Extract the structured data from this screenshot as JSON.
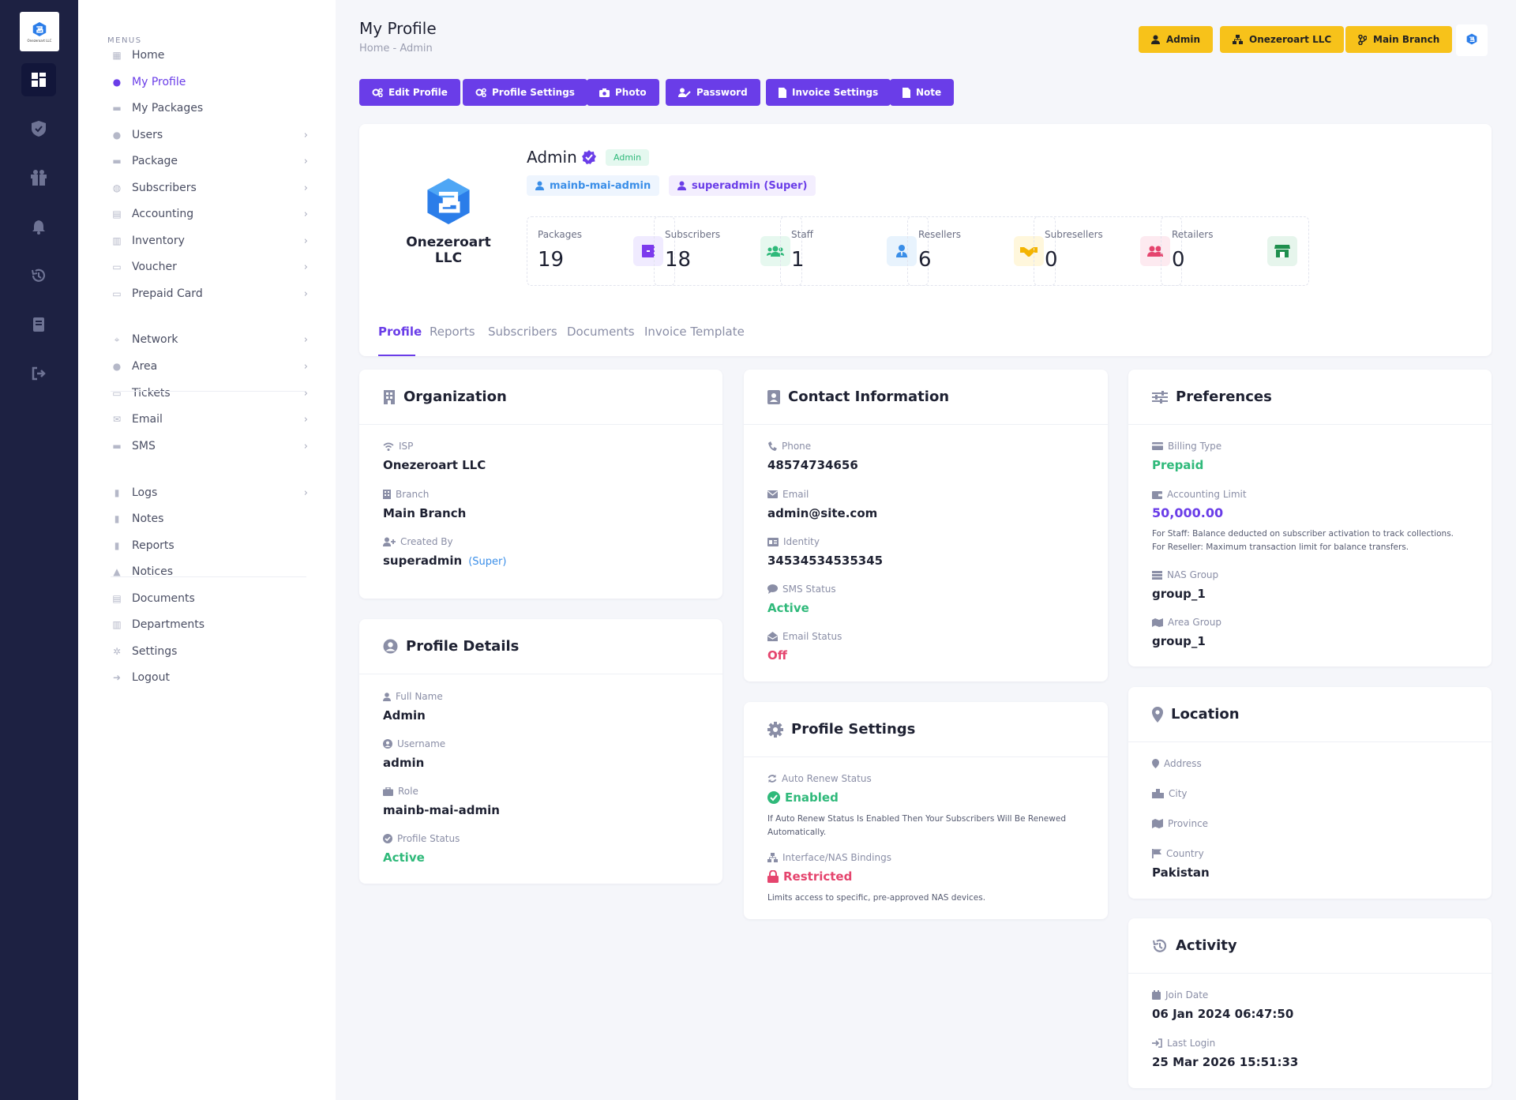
{
  "brand": {
    "name": "Onezeroart LLC",
    "logo_caption": "Onezeroart LLC"
  },
  "menu": {
    "heading": "MENUS",
    "items": [
      {
        "label": "Home",
        "icon": "home-icon",
        "chev": false
      },
      {
        "label": "My Profile",
        "icon": "user-icon",
        "chev": false,
        "active": true
      },
      {
        "label": "My Packages",
        "icon": "package-icon",
        "chev": false
      },
      {
        "label": "Users",
        "icon": "user-icon",
        "chev": true
      },
      {
        "label": "Package",
        "icon": "package-icon",
        "chev": true
      },
      {
        "label": "Subscribers",
        "icon": "users-icon",
        "chev": true
      },
      {
        "label": "Accounting",
        "icon": "calculator-icon",
        "chev": true
      },
      {
        "label": "Inventory",
        "icon": "warehouse-icon",
        "chev": true
      },
      {
        "label": "Voucher",
        "icon": "ticket-icon",
        "chev": true
      },
      {
        "label": "Prepaid Card",
        "icon": "card-icon",
        "chev": true
      },
      {
        "label": "Network",
        "icon": "network-icon",
        "chev": true
      },
      {
        "label": "Area",
        "icon": "map-pin-icon",
        "chev": true
      },
      {
        "label": "Tickets",
        "icon": "ticket-icon",
        "chev": true
      },
      {
        "label": "Email",
        "icon": "envelope-icon",
        "chev": true
      },
      {
        "label": "SMS",
        "icon": "sms-icon",
        "chev": true
      },
      {
        "label": "Logs",
        "icon": "book-icon",
        "chev": true
      },
      {
        "label": "Notes",
        "icon": "note-icon",
        "chev": false
      },
      {
        "label": "Reports",
        "icon": "report-icon",
        "chev": false
      },
      {
        "label": "Notices",
        "icon": "bell-icon",
        "chev": false
      },
      {
        "label": "Documents",
        "icon": "document-icon",
        "chev": false
      },
      {
        "label": "Departments",
        "icon": "building-icon",
        "chev": false
      },
      {
        "label": "Settings",
        "icon": "gear-icon",
        "chev": false
      },
      {
        "label": "Logout",
        "icon": "logout-icon",
        "chev": false
      }
    ]
  },
  "header": {
    "title": "My Profile",
    "breadcrumb": "Home  -  Admin",
    "top_buttons": [
      "Admin",
      "Onezeroart LLC",
      "Main Branch"
    ],
    "action_buttons": [
      "Edit Profile",
      "Profile Settings",
      "Photo",
      "Password",
      "Invoice Settings",
      "Note"
    ]
  },
  "profile": {
    "name": "Admin",
    "role_badge": "Admin",
    "chips": [
      "mainb-mai-admin",
      "superadmin (Super)"
    ],
    "stats": [
      {
        "label": "Packages",
        "value": "19",
        "color": "#7c3aed",
        "bg": "#f0ebff",
        "icon": "box-icon"
      },
      {
        "label": "Subscribers",
        "value": "18",
        "color": "#2fb97a",
        "bg": "#e6f8ef",
        "icon": "users-icon"
      },
      {
        "label": "Staff",
        "value": "1",
        "color": "#3a8ee8",
        "bg": "#e8f3fd",
        "icon": "user-tie-icon"
      },
      {
        "label": "Resellers",
        "value": "6",
        "color": "#f4b400",
        "bg": "#fff7dc",
        "icon": "handshake-icon"
      },
      {
        "label": "Subresellers",
        "value": "0",
        "color": "#e5456e",
        "bg": "#fdeaf0",
        "icon": "user-group-icon"
      },
      {
        "label": "Retailers",
        "value": "0",
        "color": "#1f8f4e",
        "bg": "#e6f5ec",
        "icon": "store-icon"
      }
    ],
    "tabs": [
      "Profile",
      "Reports",
      "Subscribers",
      "Documents",
      "Invoice Template"
    ]
  },
  "organization": {
    "title": "Organization",
    "isp_label": "ISP",
    "isp": "Onezeroart LLC",
    "branch_label": "Branch",
    "branch": "Main Branch",
    "created_label": "Created By",
    "created_by": "superadmin",
    "created_tag": "(Super)"
  },
  "profile_details": {
    "title": "Profile Details",
    "fullname_label": "Full Name",
    "fullname": "Admin",
    "username_label": "Username",
    "username": "admin",
    "role_label": "Role",
    "role": "mainb-mai-admin",
    "status_label": "Profile Status",
    "status": "Active"
  },
  "contact": {
    "title": "Contact Information",
    "phone_label": "Phone",
    "phone": "48574734656",
    "email_label": "Email",
    "email": "admin@site.com",
    "identity_label": "Identity",
    "identity": "34534534535345",
    "sms_label": "SMS Status",
    "sms": "Active",
    "email_status_label": "Email Status",
    "email_status": "Off"
  },
  "profile_settings": {
    "title": "Profile Settings",
    "auto_label": "Auto Renew Status",
    "auto": "Enabled",
    "auto_note": "If Auto Renew Status Is Enabled Then Your Subscribers Will Be Renewed Automatically.",
    "nas_label": "Interface/NAS Bindings",
    "nas": "Restricted",
    "nas_note": "Limits access to specific, pre-approved NAS devices."
  },
  "preferences": {
    "title": "Preferences",
    "billing_label": "Billing Type",
    "billing": "Prepaid",
    "limit_label": "Accounting Limit",
    "limit": "50,000.00",
    "limit_note1": "For Staff: Balance deducted on subscriber activation to track collections.",
    "limit_note2": "For Reseller: Maximum transaction limit for balance transfers.",
    "nas_label": "NAS Group",
    "nas": "group_1",
    "area_label": "Area Group",
    "area": "group_1"
  },
  "location": {
    "title": "Location",
    "address_label": "Address",
    "city_label": "City",
    "province_label": "Province",
    "country_label": "Country",
    "country": "Pakistan"
  },
  "activity": {
    "title": "Activity",
    "join_label": "Join Date",
    "join": "06 Jan 2024 06:47:50",
    "login_label": "Last Login",
    "login": "25 Mar 2026 15:51:33"
  },
  "colors": {
    "accent": "#6a3de8",
    "rail": "#1d2142",
    "warning": "#f7c21a",
    "success": "#2fb97a",
    "danger": "#e5456e"
  }
}
